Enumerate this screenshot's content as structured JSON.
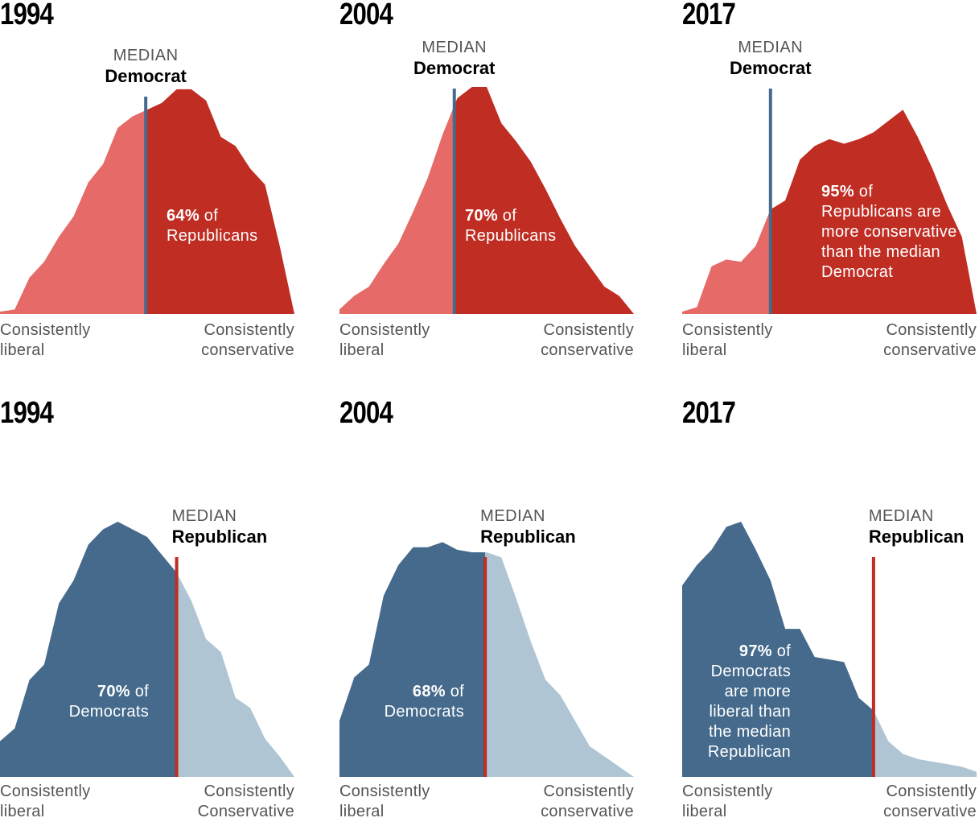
{
  "colors": {
    "gop_dark": "#BF2D23",
    "gop_light": "#E56A68",
    "dem_dark": "#456A8C",
    "dem_light": "#AFC5D4",
    "median_dem_line": "#456A8C",
    "median_gop_line": "#BF2D23"
  },
  "chart_data": [
    {
      "type": "area",
      "year": "1994",
      "party": "Republicans",
      "median_label": "MEDIAN",
      "median_party": "Democrat",
      "pct_value": "64%",
      "pct_text": " of Republicans",
      "xlabel_left": [
        "Consistently",
        "liberal"
      ],
      "xlabel_right": [
        "Consistently",
        "conservative"
      ],
      "x_range": [
        0,
        20
      ],
      "y_range": [
        0,
        100
      ],
      "median_x": 9.9,
      "x": [
        0,
        1,
        2,
        3,
        4,
        5,
        6,
        7,
        8,
        9,
        10,
        11,
        12,
        13,
        14,
        15,
        16,
        17,
        18,
        19,
        20
      ],
      "values": [
        1,
        2,
        16,
        23,
        34,
        43,
        58,
        66,
        82,
        87,
        90,
        93,
        99,
        99,
        94,
        78,
        74,
        64,
        57,
        30,
        0
      ]
    },
    {
      "type": "area",
      "year": "2004",
      "party": "Republicans",
      "median_label": "MEDIAN",
      "median_party": "Democrat",
      "pct_value": "70%",
      "pct_text": " of Republicans",
      "xlabel_left": [
        "Consistently",
        "liberal"
      ],
      "xlabel_right": [
        "Consistently",
        "conservative"
      ],
      "x_range": [
        0,
        20
      ],
      "y_range": [
        0,
        100
      ],
      "median_x": 7.8,
      "x": [
        0,
        1,
        2,
        3,
        4,
        5,
        6,
        7,
        8,
        9,
        10,
        11,
        12,
        13,
        14,
        15,
        16,
        17,
        18,
        19,
        20
      ],
      "values": [
        2,
        8,
        12,
        22,
        31,
        45,
        60,
        79,
        95,
        100,
        100,
        84,
        76,
        67,
        55,
        42,
        30,
        21,
        12,
        8,
        0
      ]
    },
    {
      "type": "area",
      "year": "2017",
      "party": "Republicans",
      "median_label": "MEDIAN",
      "median_party": "Democrat",
      "pct_value": "95%",
      "pct_text": " of Republicans are more conservative than the median Democrat",
      "xlabel_left": [
        "Consistently",
        "liberal"
      ],
      "xlabel_right": [
        "Consistently",
        "conservative"
      ],
      "x_range": [
        0,
        20
      ],
      "y_range": [
        0,
        100
      ],
      "median_x": 6.0,
      "x": [
        0,
        1,
        2,
        3,
        4,
        5,
        6,
        7,
        8,
        9,
        10,
        11,
        12,
        13,
        14,
        15,
        16,
        17,
        18,
        19,
        20
      ],
      "values": [
        1,
        3,
        21,
        24,
        23,
        30,
        46,
        50,
        68,
        74,
        77,
        75,
        77,
        80,
        85,
        90,
        78,
        64,
        48,
        34,
        0
      ]
    },
    {
      "type": "area",
      "year": "1994",
      "party": "Democrats",
      "median_label": "MEDIAN",
      "median_party": "Republican",
      "pct_value": "70%",
      "pct_text": " of Democrats",
      "xlabel_left": [
        "Consistently",
        "liberal"
      ],
      "xlabel_right": [
        "Consistently",
        "Conservative"
      ],
      "x_range": [
        0,
        20
      ],
      "y_range": [
        0,
        100
      ],
      "median_x": 12.0,
      "x": [
        0,
        1,
        2,
        3,
        4,
        5,
        6,
        7,
        8,
        9,
        10,
        11,
        12,
        13,
        14,
        15,
        16,
        17,
        18,
        19,
        20
      ],
      "values": [
        14,
        19,
        38,
        44,
        68,
        77,
        91,
        97,
        100,
        97,
        94,
        87,
        80,
        69,
        54,
        49,
        31,
        27,
        15,
        8,
        0
      ]
    },
    {
      "type": "area",
      "year": "2004",
      "party": "Democrats",
      "median_label": "MEDIAN",
      "median_party": "Republican",
      "pct_value": "68%",
      "pct_text": " of Democrats",
      "xlabel_left": [
        "Consistently",
        "liberal"
      ],
      "xlabel_right": [
        "Consistently",
        "conservative"
      ],
      "x_range": [
        0,
        20
      ],
      "y_range": [
        0,
        100
      ],
      "median_x": 9.9,
      "x": [
        0,
        1,
        2,
        3,
        4,
        5,
        6,
        7,
        8,
        9,
        10,
        11,
        12,
        13,
        14,
        15,
        16,
        17,
        18,
        19,
        20
      ],
      "values": [
        22,
        39,
        44,
        71,
        83,
        90,
        90,
        92,
        89,
        88,
        88,
        86,
        70,
        53,
        38,
        32,
        22,
        12,
        8,
        4,
        0
      ]
    },
    {
      "type": "area",
      "year": "2017",
      "party": "Democrats",
      "median_label": "MEDIAN",
      "median_party": "Republican",
      "pct_value": "97%",
      "pct_text": " of Democrats are more liberal than the median Republican",
      "xlabel_left": [
        "Consistently",
        "liberal"
      ],
      "xlabel_right": [
        "Consistently",
        "conservative"
      ],
      "x_range": [
        0,
        20
      ],
      "y_range": [
        0,
        100
      ],
      "median_x": 13.0,
      "x": [
        0,
        1,
        2,
        3,
        4,
        5,
        6,
        7,
        8,
        9,
        10,
        11,
        12,
        13,
        14,
        15,
        16,
        17,
        18,
        19,
        20
      ],
      "values": [
        75,
        83,
        89,
        98,
        100,
        89,
        77,
        58,
        58,
        47,
        46,
        45,
        31,
        26,
        14,
        9,
        7,
        6,
        5,
        4,
        2
      ]
    }
  ]
}
